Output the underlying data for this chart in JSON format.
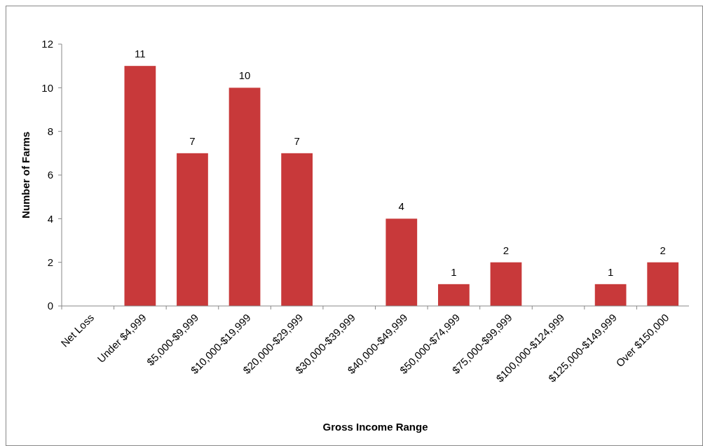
{
  "chart_data": {
    "type": "bar",
    "xlabel": "Gross Income Range",
    "ylabel": "Number of Farms",
    "categories": [
      "Net Loss",
      "Under $4,999",
      "$5,000-$9,999",
      "$10,000-$19,999",
      "$20,000-$29,999",
      "$30,000-$39,999",
      "$40,000-$49,999",
      "$50,000-$74,999",
      "$75,000-$99,999",
      "$100,000-$124,999",
      "$125,000-$149,999",
      "Over $150,000"
    ],
    "values": [
      0,
      11,
      7,
      10,
      7,
      0,
      4,
      1,
      2,
      0,
      1,
      2
    ],
    "value_labels": [
      null,
      "11",
      "7",
      "10",
      "7",
      null,
      "4",
      "1",
      "2",
      null,
      "1",
      "2"
    ],
    "color": "#c8393a",
    "ylim": [
      0,
      12
    ],
    "yticks": [
      0,
      2,
      4,
      6,
      8,
      10,
      12
    ],
    "grid": false
  }
}
